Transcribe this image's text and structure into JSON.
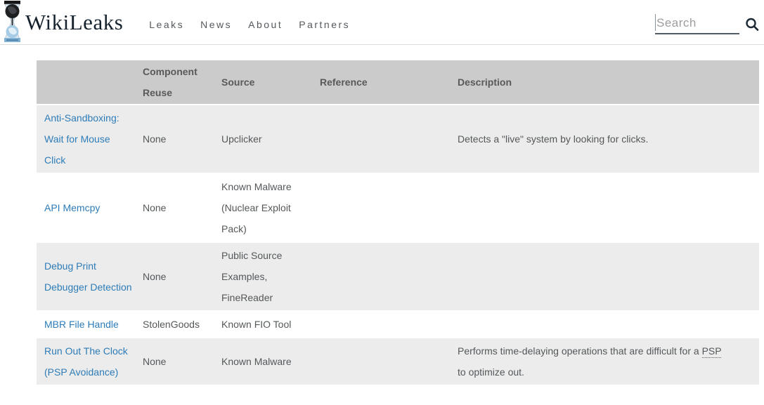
{
  "header": {
    "brand": "WikiLeaks",
    "nav_items": [
      {
        "label": "Leaks"
      },
      {
        "label": "News"
      },
      {
        "label": "About"
      },
      {
        "label": "Partners"
      }
    ],
    "search": {
      "placeholder": "Search"
    }
  },
  "table": {
    "columns": [
      "",
      "Component Reuse",
      "Source",
      "Reference",
      "Description"
    ],
    "rows": [
      {
        "name": "Anti-Sandboxing: Wait for Mouse Click",
        "component_reuse": "None",
        "source": "Upclicker",
        "reference": "",
        "description": "Detects a \"live\" system by looking for clicks."
      },
      {
        "name": "API Memcpy",
        "component_reuse": "None",
        "source": "Known Malware (Nuclear Exploit Pack)",
        "reference": "",
        "description": ""
      },
      {
        "name": "Debug Print Debugger Detection",
        "component_reuse": "None",
        "source": "Public Source Examples, FineReader",
        "reference": "",
        "description": ""
      },
      {
        "name": "MBR File Handle",
        "component_reuse": "StolenGoods",
        "source": "Known FIO Tool",
        "reference": "",
        "description": ""
      },
      {
        "name": "Run Out The Clock (PSP Avoidance)",
        "component_reuse": "None",
        "source": "Known Malware",
        "reference": "",
        "description": "Performs time-delaying operations that are difficult for a PSP to optimize out.",
        "abbr_term": "PSP"
      }
    ]
  },
  "colors": {
    "link_blue": "#2d7cb8",
    "table_header_bg": "#cbcbcb",
    "row_alt_bg": "#ececec",
    "body_text": "#54585a",
    "brand_text": "#15222d"
  }
}
